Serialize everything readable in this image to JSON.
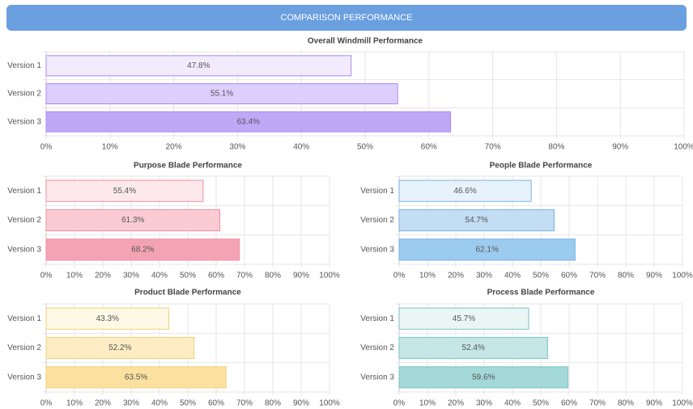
{
  "header": {
    "title": "COMPARISON PERFORMANCE"
  },
  "chart_data": [
    {
      "type": "hbar",
      "title": "Overall Windmill Performance",
      "categories": [
        "Version 1",
        "Version 2",
        "Version 3"
      ],
      "values": [
        47.8,
        55.1,
        63.4
      ],
      "value_labels": [
        "47.8%",
        "55.1%",
        "63.4%"
      ],
      "colors": [
        "#f1ebfd",
        "#dccffc",
        "#c0a8f7"
      ],
      "border_color": "#a98bef",
      "grid": true,
      "xlim": [
        0,
        100
      ],
      "xticks": [
        {
          "value": 0,
          "label": "0%"
        },
        {
          "value": 10,
          "label": "10%"
        },
        {
          "value": 20,
          "label": "20%"
        },
        {
          "value": 30,
          "label": "30%"
        },
        {
          "value": 40,
          "label": "40%"
        },
        {
          "value": 50,
          "label": "50%"
        },
        {
          "value": 60,
          "label": "60%"
        },
        {
          "value": 70,
          "label": "70%"
        },
        {
          "value": 80,
          "label": "80%"
        },
        {
          "value": 90,
          "label": "90%"
        },
        {
          "value": 100,
          "label": "100%"
        }
      ]
    },
    {
      "type": "hbar",
      "title": "Purpose Blade Performance",
      "categories": [
        "Version 1",
        "Version 2",
        "Version 3"
      ],
      "values": [
        55.4,
        61.3,
        68.2
      ],
      "value_labels": [
        "55.4%",
        "61.3%",
        "68.2%"
      ],
      "colors": [
        "#fde9ec",
        "#fbcbd4",
        "#f4a3b4"
      ],
      "border_color": "#ef8ea2",
      "grid": true,
      "xlim": [
        0,
        100
      ],
      "xticks": [
        {
          "value": 0,
          "label": "0%"
        },
        {
          "value": 10,
          "label": "10%"
        },
        {
          "value": 20,
          "label": "20%"
        },
        {
          "value": 30,
          "label": "30%"
        },
        {
          "value": 40,
          "label": "40%"
        },
        {
          "value": 50,
          "label": "50%"
        },
        {
          "value": 60,
          "label": "60%"
        },
        {
          "value": 70,
          "label": "70%"
        },
        {
          "value": 80,
          "label": "80%"
        },
        {
          "value": 90,
          "label": "90%"
        },
        {
          "value": 100,
          "label": "100%"
        }
      ]
    },
    {
      "type": "hbar",
      "title": "People Blade Performance",
      "categories": [
        "Version 1",
        "Version 2",
        "Version 3"
      ],
      "values": [
        46.6,
        54.7,
        62.1
      ],
      "value_labels": [
        "46.6%",
        "54.7%",
        "62.1%"
      ],
      "colors": [
        "#e8f2fc",
        "#c3ddf5",
        "#9ccbf0"
      ],
      "border_color": "#75b3e8",
      "grid": true,
      "xlim": [
        0,
        100
      ],
      "xticks": [
        {
          "value": 0,
          "label": "0%"
        },
        {
          "value": 10,
          "label": "10%"
        },
        {
          "value": 20,
          "label": "20%"
        },
        {
          "value": 30,
          "label": "30%"
        },
        {
          "value": 40,
          "label": "40%"
        },
        {
          "value": 50,
          "label": "50%"
        },
        {
          "value": 60,
          "label": "60%"
        },
        {
          "value": 70,
          "label": "70%"
        },
        {
          "value": 80,
          "label": "80%"
        },
        {
          "value": 90,
          "label": "90%"
        },
        {
          "value": 100,
          "label": "100%"
        }
      ]
    },
    {
      "type": "hbar",
      "title": "Product Blade Performance",
      "categories": [
        "Version 1",
        "Version 2",
        "Version 3"
      ],
      "values": [
        43.3,
        52.2,
        63.5
      ],
      "value_labels": [
        "43.3%",
        "52.2%",
        "63.5%"
      ],
      "colors": [
        "#fef8e6",
        "#fdecc4",
        "#fbe0a0"
      ],
      "border_color": "#f4cf79",
      "grid": true,
      "xlim": [
        0,
        100
      ],
      "xticks": [
        {
          "value": 0,
          "label": "0%"
        },
        {
          "value": 10,
          "label": "10%"
        },
        {
          "value": 20,
          "label": "20%"
        },
        {
          "value": 30,
          "label": "30%"
        },
        {
          "value": 40,
          "label": "40%"
        },
        {
          "value": 50,
          "label": "50%"
        },
        {
          "value": 60,
          "label": "60%"
        },
        {
          "value": 70,
          "label": "70%"
        },
        {
          "value": 80,
          "label": "80%"
        },
        {
          "value": 90,
          "label": "90%"
        },
        {
          "value": 100,
          "label": "100%"
        }
      ]
    },
    {
      "type": "hbar",
      "title": "Process Blade Performance",
      "categories": [
        "Version 1",
        "Version 2",
        "Version 3"
      ],
      "values": [
        45.7,
        52.4,
        59.6
      ],
      "value_labels": [
        "45.7%",
        "52.4%",
        "59.6%"
      ],
      "colors": [
        "#eaf6f6",
        "#c5e6e6",
        "#a3d9d8"
      ],
      "border_color": "#7bc4c2",
      "grid": true,
      "xlim": [
        0,
        100
      ],
      "xticks": [
        {
          "value": 0,
          "label": "0%"
        },
        {
          "value": 10,
          "label": "10%"
        },
        {
          "value": 20,
          "label": "20%"
        },
        {
          "value": 30,
          "label": "30%"
        },
        {
          "value": 40,
          "label": "40%"
        },
        {
          "value": 50,
          "label": "50%"
        },
        {
          "value": 60,
          "label": "60%"
        },
        {
          "value": 70,
          "label": "70%"
        },
        {
          "value": 80,
          "label": "80%"
        },
        {
          "value": 90,
          "label": "90%"
        },
        {
          "value": 100,
          "label": "100%"
        }
      ]
    }
  ]
}
